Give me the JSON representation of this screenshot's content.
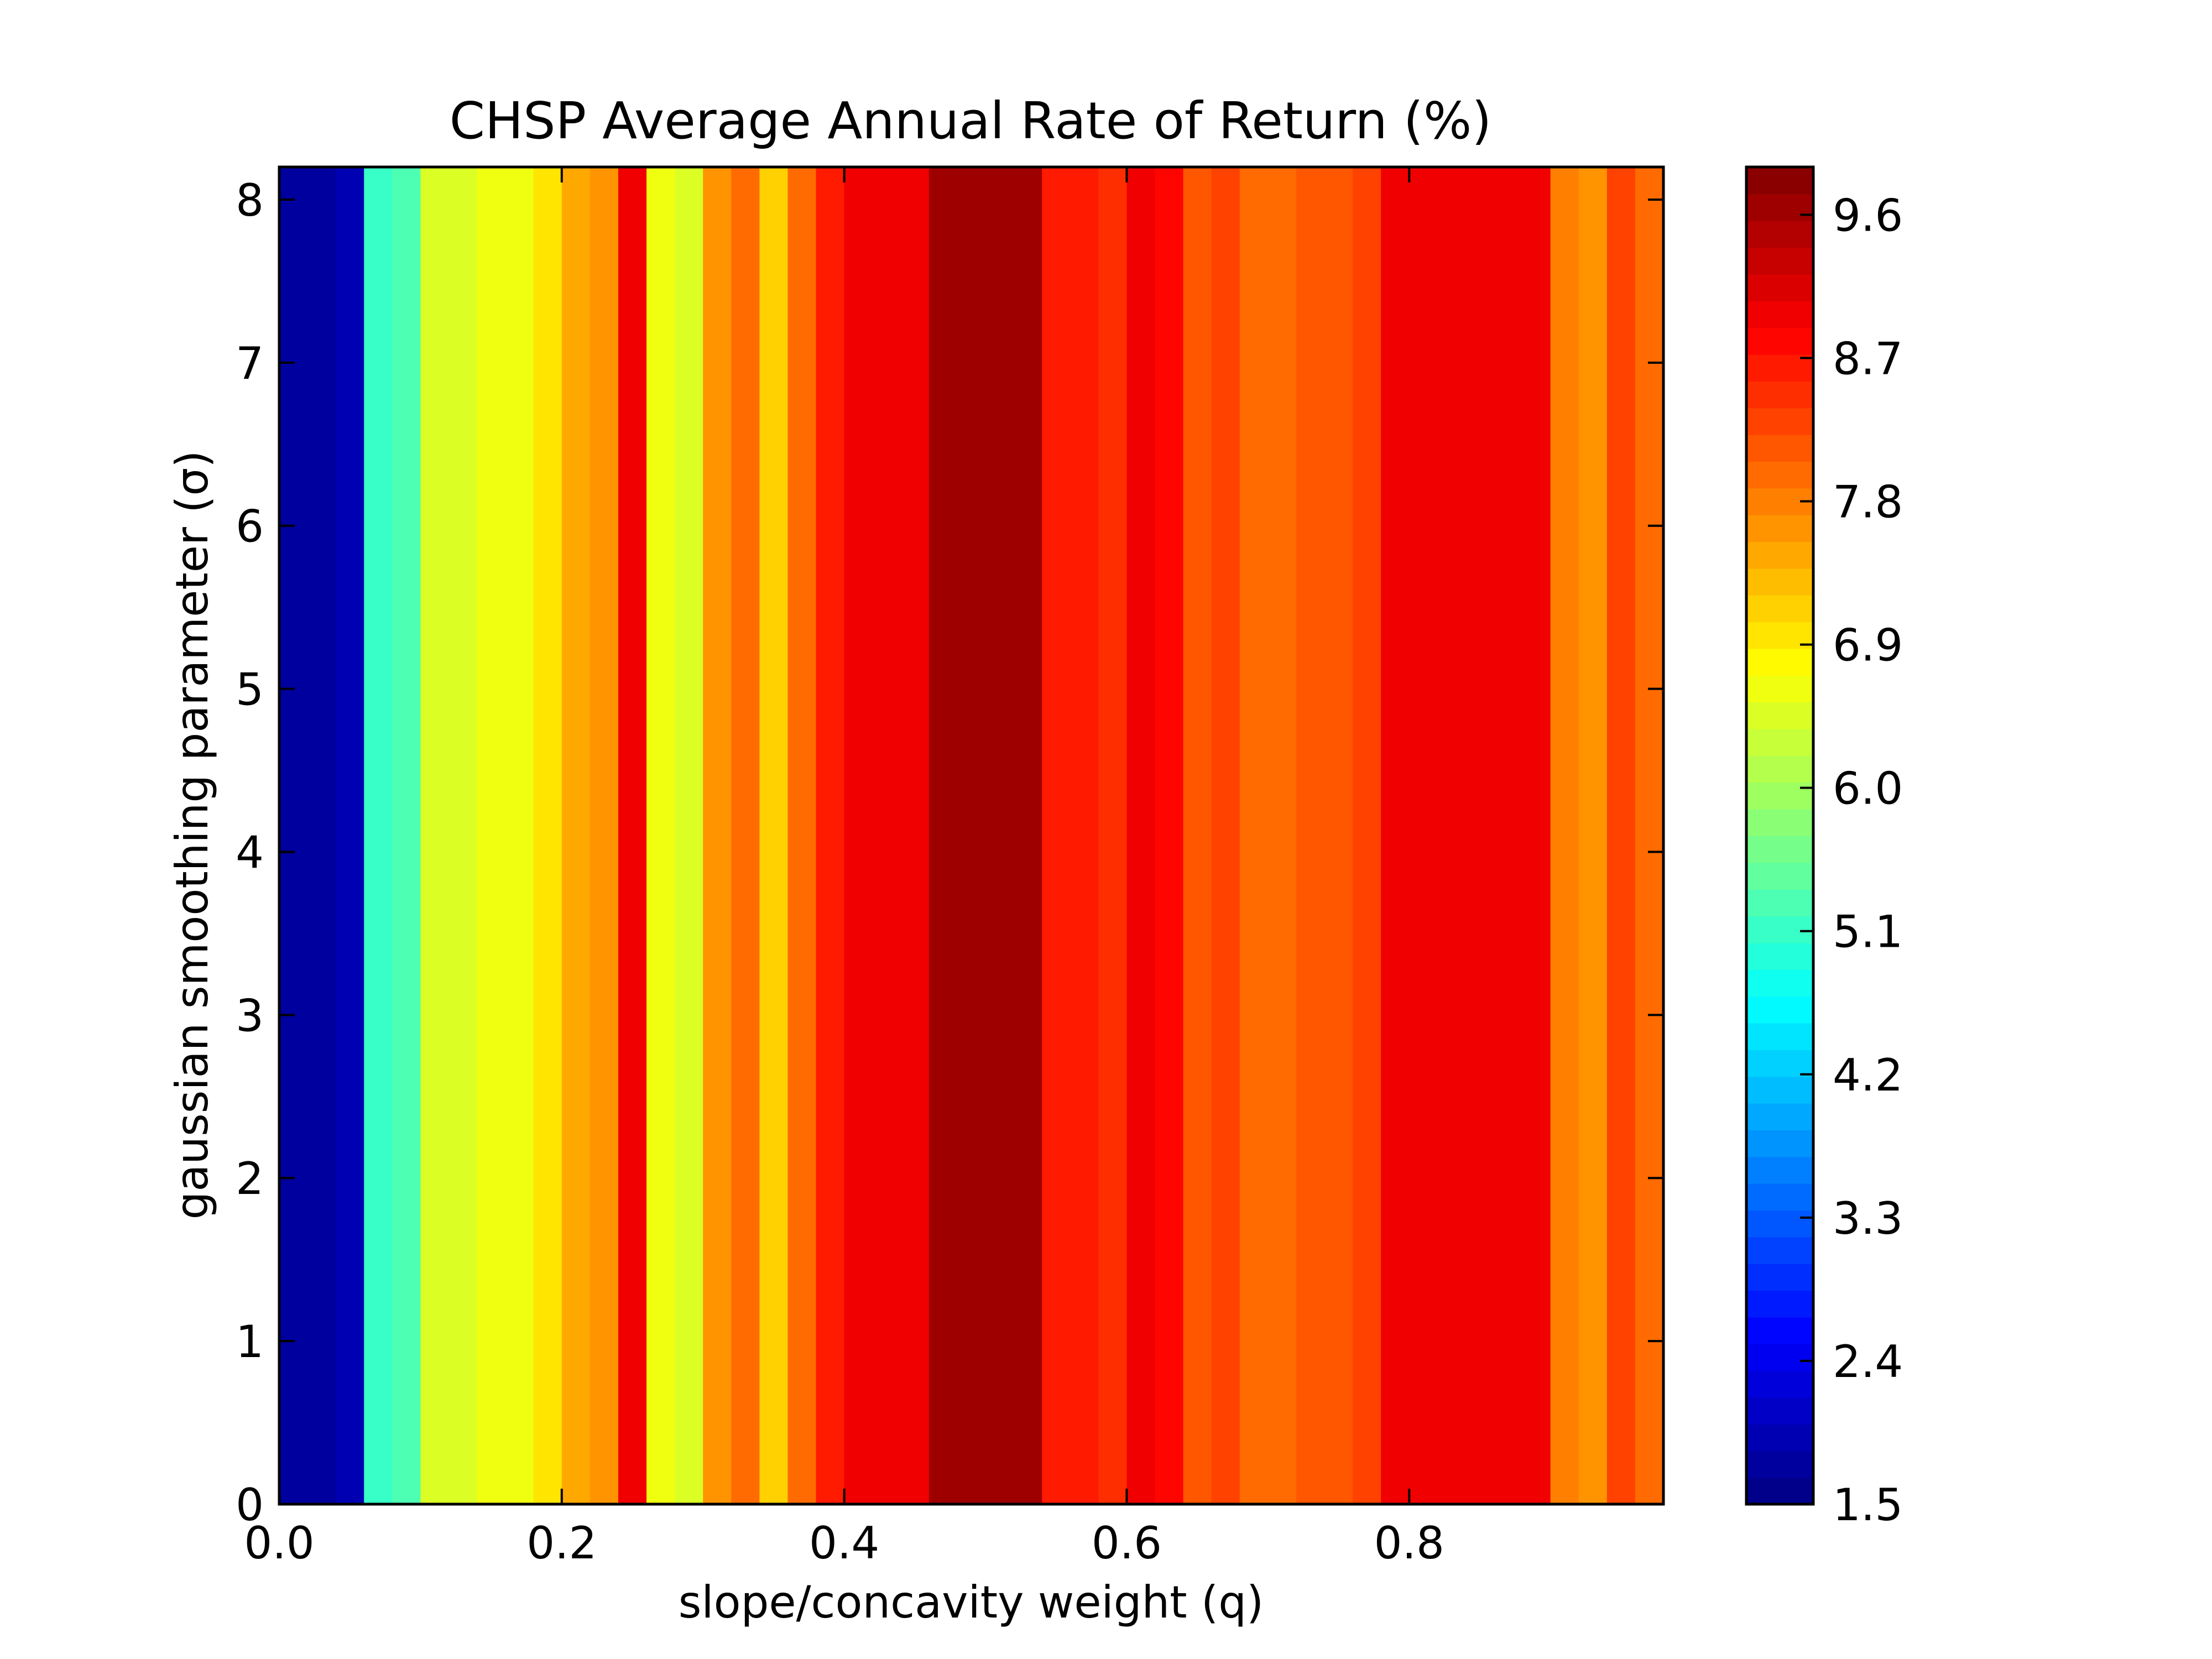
{
  "chart_data": {
    "type": "heatmap",
    "title": "CHSP Average Annual Rate of Return (%)",
    "xlabel": "slope/concavity weight (q)",
    "ylabel": "gaussian smoothing parameter (σ)",
    "xlim": [
      0,
      0.98
    ],
    "ylim": [
      0,
      8.2
    ],
    "x_ticks": [
      0.0,
      0.2,
      0.4,
      0.6,
      0.8
    ],
    "x_tick_labels": [
      "0.0",
      "0.2",
      "0.4",
      "0.6",
      "0.8"
    ],
    "y_ticks": [
      0,
      1,
      2,
      3,
      4,
      5,
      6,
      7,
      8
    ],
    "y_tick_labels": [
      "0",
      "1",
      "2",
      "3",
      "4",
      "5",
      "6",
      "7",
      "8"
    ],
    "colorbar": {
      "colormap": "jet",
      "range": [
        1.5,
        9.9
      ],
      "levels": 50,
      "ticks": [
        1.5,
        2.4,
        3.3,
        4.2,
        5.1,
        6.0,
        6.9,
        7.8,
        8.7,
        9.6
      ],
      "tick_labels": [
        "1.5",
        "2.4",
        "3.3",
        "4.2",
        "5.1",
        "6.0",
        "6.9",
        "7.8",
        "8.7",
        "9.6"
      ]
    },
    "q": [
      0.0,
      0.02,
      0.04,
      0.06,
      0.08,
      0.1,
      0.12,
      0.14,
      0.16,
      0.18,
      0.2,
      0.22,
      0.24,
      0.26,
      0.28,
      0.3,
      0.32,
      0.34,
      0.36,
      0.38,
      0.4,
      0.42,
      0.44,
      0.46,
      0.48,
      0.5,
      0.52,
      0.54,
      0.56,
      0.58,
      0.6,
      0.62,
      0.64,
      0.66,
      0.68,
      0.7,
      0.72,
      0.74,
      0.76,
      0.78,
      0.8,
      0.82,
      0.84,
      0.86,
      0.88,
      0.9,
      0.92,
      0.94,
      0.96,
      0.98
    ],
    "values": [
      1.8,
      1.8,
      1.9,
      5.1,
      5.2,
      6.5,
      6.5,
      6.6,
      6.7,
      7.0,
      7.5,
      7.6,
      9.0,
      6.6,
      6.5,
      7.6,
      8.0,
      7.2,
      8.0,
      8.7,
      8.9,
      9.0,
      9.0,
      9.7,
      9.7,
      9.6,
      9.6,
      8.7,
      8.6,
      8.4,
      8.9,
      8.8,
      8.2,
      8.3,
      7.9,
      7.9,
      8.2,
      8.2,
      8.3,
      9.0,
      9.0,
      9.0,
      9.0,
      9.0,
      9.0,
      7.8,
      7.6,
      8.3,
      8.0,
      8.0
    ]
  }
}
